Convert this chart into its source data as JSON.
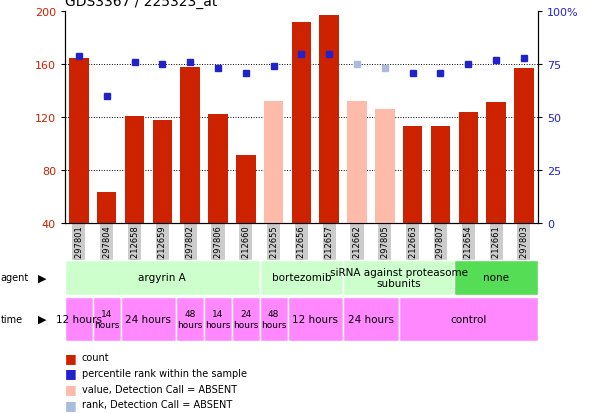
{
  "title": "GDS3367 / 225323_at",
  "samples": [
    "GSM297801",
    "GSM297804",
    "GSM212658",
    "GSM212659",
    "GSM297802",
    "GSM297806",
    "GSM212660",
    "GSM212655",
    "GSM212656",
    "GSM212657",
    "GSM212662",
    "GSM297805",
    "GSM212663",
    "GSM297807",
    "GSM212654",
    "GSM212661",
    "GSM297803"
  ],
  "bar_values": [
    165,
    63,
    121,
    118,
    158,
    122,
    91,
    132,
    192,
    197,
    132,
    126,
    113,
    113,
    124,
    131,
    157
  ],
  "bar_absent": [
    false,
    false,
    false,
    false,
    false,
    false,
    false,
    true,
    false,
    false,
    true,
    true,
    false,
    false,
    false,
    false,
    false
  ],
  "rank_values": [
    79,
    60,
    76,
    75,
    76,
    73,
    71,
    74,
    80,
    80,
    75,
    73,
    71,
    71,
    75,
    77,
    78
  ],
  "rank_absent": [
    false,
    false,
    false,
    false,
    false,
    false,
    false,
    false,
    false,
    false,
    true,
    true,
    false,
    false,
    false,
    false,
    false
  ],
  "ylim_left": [
    40,
    200
  ],
  "ylim_right": [
    0,
    100
  ],
  "yticks_left": [
    40,
    80,
    120,
    160,
    200
  ],
  "yticks_right": [
    0,
    25,
    50,
    75,
    100
  ],
  "bar_color_normal": "#cc2200",
  "bar_color_absent": "#ffbbaa",
  "rank_color_normal": "#2222cc",
  "rank_color_absent": "#aabbdd",
  "agent_groups": [
    {
      "label": "argyrin A",
      "start": 0,
      "end": 7,
      "color": "#ccffcc"
    },
    {
      "label": "bortezomib",
      "start": 7,
      "end": 10,
      "color": "#ccffcc"
    },
    {
      "label": "siRNA against proteasome\nsubunits",
      "start": 10,
      "end": 14,
      "color": "#ccffcc"
    },
    {
      "label": "none",
      "start": 14,
      "end": 17,
      "color": "#55dd55"
    }
  ],
  "time_group_defs": [
    {
      "label": "12 hours",
      "start": 0,
      "end": 1
    },
    {
      "label": "14\nhours",
      "start": 1,
      "end": 2
    },
    {
      "label": "24 hours",
      "start": 2,
      "end": 4
    },
    {
      "label": "48\nhours",
      "start": 4,
      "end": 5
    },
    {
      "label": "14\nhours",
      "start": 5,
      "end": 6
    },
    {
      "label": "24\nhours",
      "start": 6,
      "end": 7
    },
    {
      "label": "48\nhours",
      "start": 7,
      "end": 8
    },
    {
      "label": "12 hours",
      "start": 8,
      "end": 10
    },
    {
      "label": "24 hours",
      "start": 10,
      "end": 12
    },
    {
      "label": "control",
      "start": 12,
      "end": 17
    }
  ],
  "legend_items": [
    {
      "label": "count",
      "color": "#cc2200"
    },
    {
      "label": "percentile rank within the sample",
      "color": "#2222cc"
    },
    {
      "label": "value, Detection Call = ABSENT",
      "color": "#ffbbaa"
    },
    {
      "label": "rank, Detection Call = ABSENT",
      "color": "#aabbdd"
    }
  ],
  "grid_dotted_values": [
    80,
    120,
    160
  ],
  "agent_label_color": "#ccffcc",
  "time_label_color": "#ff88ff",
  "sample_bg_color": "#cccccc",
  "fig_width": 5.91,
  "fig_height": 4.14
}
